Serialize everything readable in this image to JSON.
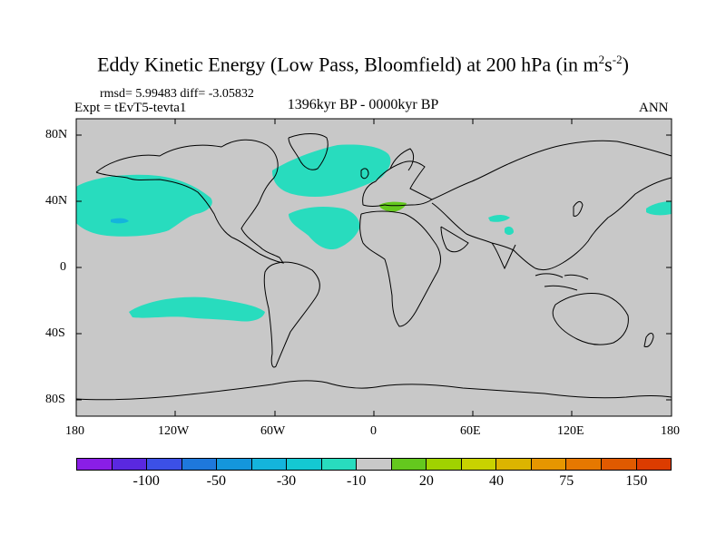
{
  "title": {
    "main": "Eddy Kinetic Energy (Low Pass, Bloomfield) at 200 hPa (in m",
    "sup1": "2",
    "mid": "s",
    "sup2": "-2",
    "end": ")"
  },
  "stats_line": "rmsd= 5.99483 diff= -3.05832",
  "experiment": "Expt = tEvT5-tevta1",
  "period": "1396kyr BP - 0000kyr BP",
  "season": "ANN",
  "lat_labels": [
    "80N",
    "40N",
    "0",
    "40S",
    "80S"
  ],
  "lon_labels": [
    "180",
    "120W",
    "60W",
    "0",
    "60E",
    "120E",
    "180"
  ],
  "colorbar": {
    "colors": [
      "#8a1ee6",
      "#5a28e0",
      "#3c50e6",
      "#1e78dc",
      "#1496dc",
      "#14b4dc",
      "#14c8d2",
      "#28dcbe",
      "#c8c8c8",
      "#64c81e",
      "#a0d200",
      "#c8d200",
      "#dcb400",
      "#e69600",
      "#e67800",
      "#e05a00",
      "#dc3c00"
    ],
    "labels": [
      {
        "text": "-100",
        "index": 2
      },
      {
        "text": "-50",
        "index": 4
      },
      {
        "text": "-30",
        "index": 6
      },
      {
        "text": "-10",
        "index": 8
      },
      {
        "text": "20",
        "index": 10
      },
      {
        "text": "40",
        "index": 12
      },
      {
        "text": "75",
        "index": 14
      },
      {
        "text": "150",
        "index": 16
      }
    ]
  },
  "colors": {
    "background": "#c8c8c8",
    "negative_fill": "#28dcbe",
    "positive_fill": "#64c81e",
    "deep_negative": "#14b4dc"
  }
}
